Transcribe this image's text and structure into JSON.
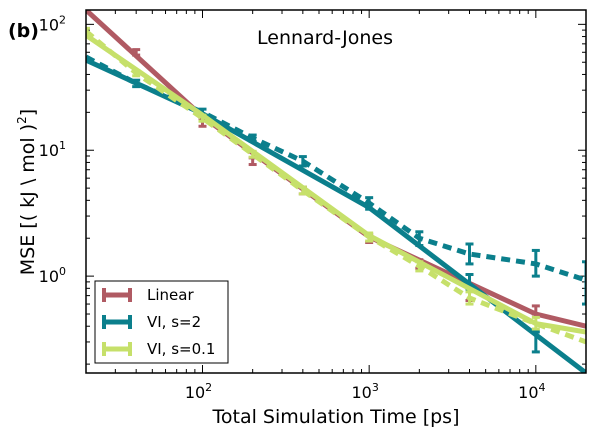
{
  "panel_label": "(b)",
  "chart_data": {
    "type": "line",
    "title": "Lennard-Jones",
    "xlabel": "Total Simulation Time [ps]",
    "ylabel": "MSE [( kJ \\ mol )",
    "ylabel_sup": "2",
    "ylabel_close": "]",
    "x_scale": "log",
    "y_scale": "log",
    "xlim": [
      20,
      20000
    ],
    "ylim": [
      0.17,
      130
    ],
    "x_ticks": [
      {
        "value": 100,
        "base": "10",
        "exp": "2"
      },
      {
        "value": 1000,
        "base": "10",
        "exp": "3"
      },
      {
        "value": 10000,
        "base": "10",
        "exp": "4"
      }
    ],
    "y_ticks": [
      {
        "value": 1,
        "base": "10",
        "exp": "0"
      },
      {
        "value": 10,
        "base": "10",
        "exp": "1"
      },
      {
        "value": 100,
        "base": "10",
        "exp": "2"
      }
    ],
    "legend_position": "lower-left",
    "series": [
      {
        "name": "Linear",
        "color": "#b05a63",
        "fit": [
          [
            20,
            130
          ],
          [
            100,
            18.5
          ],
          [
            1000,
            2.05
          ],
          [
            10000,
            0.5
          ],
          [
            20000,
            0.4
          ]
        ],
        "data_dashed": false,
        "points": [
          {
            "x": 40,
            "y": 60,
            "lo": 57,
            "hi": 63
          },
          {
            "x": 100,
            "y": 16.5,
            "lo": 15.5,
            "hi": 17.5
          },
          {
            "x": 200,
            "y": 8.2,
            "lo": 7.7,
            "hi": 8.7
          },
          {
            "x": 400,
            "y": 4.8,
            "lo": 4.5,
            "hi": 5.1
          },
          {
            "x": 1000,
            "y": 2.0,
            "lo": 1.85,
            "hi": 2.15
          },
          {
            "x": 2000,
            "y": 1.25,
            "lo": 1.15,
            "hi": 1.35
          },
          {
            "x": 4000,
            "y": 0.7,
            "lo": 0.64,
            "hi": 0.76
          },
          {
            "x": 10000,
            "y": 0.54,
            "lo": 0.5,
            "hi": 0.58
          }
        ]
      },
      {
        "name": "VI, s=2",
        "color": "#0b7f8c",
        "fit": [
          [
            20,
            52
          ],
          [
            100,
            19.5
          ],
          [
            1000,
            3.5
          ],
          [
            20000,
            0.17
          ]
        ],
        "data_dashed": true,
        "data_line": [
          [
            20,
            55
          ],
          [
            40,
            34
          ],
          [
            100,
            20
          ],
          [
            200,
            12.5
          ],
          [
            400,
            8.2
          ],
          [
            1000,
            3.8
          ],
          [
            2000,
            2.0
          ],
          [
            4000,
            1.5
          ],
          [
            10000,
            1.25
          ],
          [
            20000,
            0.93
          ]
        ],
        "points": [
          {
            "x": 40,
            "y": 34,
            "lo": 32,
            "hi": 36
          },
          {
            "x": 100,
            "y": 20,
            "lo": 18.8,
            "hi": 21.2
          },
          {
            "x": 200,
            "y": 12.5,
            "lo": 11.8,
            "hi": 13.2
          },
          {
            "x": 400,
            "y": 8.2,
            "lo": 7.5,
            "hi": 8.9
          },
          {
            "x": 1000,
            "y": 3.8,
            "lo": 3.4,
            "hi": 4.2
          },
          {
            "x": 2000,
            "y": 2.0,
            "lo": 1.75,
            "hi": 2.25
          },
          {
            "x": 4000,
            "y": 0.9,
            "lo": 0.77,
            "hi": 1.03
          },
          {
            "x": 4000,
            "y": 1.5,
            "lo": 1.25,
            "hi": 1.8
          },
          {
            "x": 10000,
            "y": 0.3,
            "lo": 0.25,
            "hi": 0.36
          },
          {
            "x": 10000,
            "y": 1.25,
            "lo": 1.0,
            "hi": 1.6
          },
          {
            "x": 20000,
            "y": 0.93,
            "lo": 0.6,
            "hi": 1.3
          }
        ]
      },
      {
        "name": "VI, s=0.1",
        "color": "#c6e06a",
        "fit": [
          [
            20,
            82
          ],
          [
            100,
            19
          ],
          [
            1000,
            2.1
          ],
          [
            10000,
            0.42
          ],
          [
            20000,
            0.36
          ]
        ],
        "data_dashed": true,
        "data_line": [
          [
            20,
            88
          ],
          [
            40,
            41
          ],
          [
            100,
            18
          ],
          [
            200,
            9.3
          ],
          [
            400,
            4.8
          ],
          [
            1000,
            2.05
          ],
          [
            2000,
            1.2
          ],
          [
            4000,
            0.67
          ],
          [
            10000,
            0.42
          ],
          [
            20000,
            0.3
          ]
        ],
        "points": [
          {
            "x": 20,
            "y": 88,
            "lo": 83,
            "hi": 93
          },
          {
            "x": 40,
            "y": 41,
            "lo": 39,
            "hi": 43
          },
          {
            "x": 100,
            "y": 18,
            "lo": 17,
            "hi": 19
          },
          {
            "x": 200,
            "y": 9.3,
            "lo": 8.8,
            "hi": 9.8
          },
          {
            "x": 400,
            "y": 4.8,
            "lo": 4.5,
            "hi": 5.1
          },
          {
            "x": 1000,
            "y": 2.05,
            "lo": 1.9,
            "hi": 2.2
          },
          {
            "x": 2000,
            "y": 1.2,
            "lo": 1.1,
            "hi": 1.3
          },
          {
            "x": 4000,
            "y": 0.67,
            "lo": 0.6,
            "hi": 0.75
          },
          {
            "x": 10000,
            "y": 0.42,
            "lo": 0.38,
            "hi": 0.47
          }
        ]
      }
    ]
  }
}
